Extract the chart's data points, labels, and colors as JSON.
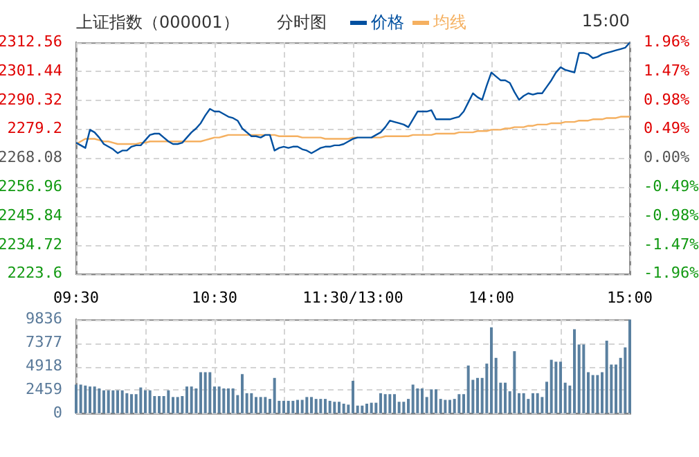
{
  "chart_data": [
    {
      "type": "line",
      "title": "上证指数（000001）",
      "subtitle": "分时图",
      "annotations": [
        "15:00"
      ],
      "legend": "top",
      "grid": true,
      "marker": "none",
      "categories": [
        "09:30",
        null,
        null,
        null,
        null,
        null,
        null,
        null,
        null,
        null,
        null,
        null,
        null,
        null,
        null,
        null,
        null,
        null,
        null,
        null,
        null,
        null,
        null,
        null,
        null,
        null,
        null,
        null,
        null,
        null,
        "10:30",
        null,
        null,
        null,
        null,
        null,
        null,
        null,
        null,
        null,
        null,
        null,
        null,
        null,
        null,
        null,
        null,
        null,
        null,
        null,
        null,
        null,
        null,
        null,
        null,
        null,
        null,
        null,
        null,
        null,
        "11:30/13:00",
        null,
        null,
        null,
        null,
        null,
        null,
        null,
        null,
        null,
        null,
        null,
        null,
        null,
        null,
        null,
        null,
        null,
        null,
        null,
        null,
        null,
        null,
        null,
        null,
        null,
        null,
        null,
        null,
        null,
        "14:00",
        null,
        null,
        null,
        null,
        null,
        null,
        null,
        null,
        null,
        null,
        null,
        null,
        null,
        null,
        null,
        null,
        null,
        null,
        null,
        null,
        null,
        null,
        null,
        null,
        null,
        null,
        null,
        null,
        null,
        "15:00"
      ],
      "ylim": [
        2223.6,
        2312.56
      ],
      "yticks": [
        2223.6,
        2234.72,
        2245.84,
        2256.96,
        2268.08,
        2279.2,
        2290.32,
        2301.44,
        2312.56
      ],
      "y2lim": [
        -1.96,
        1.96
      ],
      "y2ticks": [
        {
          "value": -1.96,
          "label": "-1.96%"
        },
        {
          "value": -1.47,
          "label": "-1.47%"
        },
        {
          "value": -0.98,
          "label": "-0.98%"
        },
        {
          "value": -0.49,
          "label": "-0.49%"
        },
        {
          "value": 0,
          "label": "0.00%"
        },
        {
          "value": 0.49,
          "label": "0.49%"
        },
        {
          "value": 0.98,
          "label": "0.98%"
        },
        {
          "value": 1.47,
          "label": "1.47%"
        },
        {
          "value": 1.96,
          "label": "1.96%"
        }
      ],
      "series": [
        {
          "name": "价格",
          "color": "#0050a0",
          "values": [
            2274,
            2273,
            2272,
            2279,
            2278,
            2276,
            2273.5,
            2272.5,
            2271.5,
            2270,
            2271,
            2271,
            2272.5,
            2273,
            2273,
            2275,
            2277,
            2277.5,
            2277.5,
            2276,
            2274.5,
            2273.5,
            2273.5,
            2274,
            2276,
            2278,
            2279.5,
            2281.5,
            2284.5,
            2287,
            2286,
            2286,
            2285,
            2284,
            2283.5,
            2282.5,
            2279.5,
            2278,
            2276.5,
            2276.5,
            2276,
            2277,
            2277,
            2271,
            2272,
            2272.5,
            2272,
            2272.5,
            2272.5,
            2271.5,
            2271,
            2270,
            2271,
            2272,
            2272.5,
            2272.5,
            2273,
            2273,
            2273.5,
            2274.5,
            2275.5,
            2276,
            2276,
            2276,
            2276,
            2277,
            2278,
            2280,
            2282.5,
            2282,
            2281.5,
            2281,
            2280,
            2283,
            2286,
            2286,
            2286,
            2286.5,
            2283,
            2283,
            2283,
            2283,
            2283.5,
            2284,
            2286,
            2289.5,
            2293,
            2291.5,
            2290.5,
            2296,
            2301,
            2299.5,
            2298,
            2298,
            2297,
            2293.5,
            2290.5,
            2292,
            2293,
            2292.5,
            2293,
            2293,
            2295.5,
            2298,
            2301,
            2303,
            2302,
            2301.5,
            2301,
            2308.5,
            2308.5,
            2308,
            2306.5,
            2307,
            2308,
            2308.5,
            2309,
            2309.5,
            2310,
            2310.5,
            2312.5
          ]
        },
        {
          "name": "均线",
          "color": "#f5b060",
          "values": [
            2273.5,
            2274.5,
            2275.5,
            2275.5,
            2275.5,
            2275,
            2274.5,
            2274.5,
            2274,
            2273.5,
            2273.5,
            2273.5,
            2273.5,
            2273.5,
            2274,
            2274,
            2274.5,
            2274.5,
            2274.5,
            2274.5,
            2274.5,
            2274.5,
            2274.5,
            2274.5,
            2274.5,
            2274.5,
            2274.5,
            2274.5,
            2275,
            2275.5,
            2276,
            2276,
            2276.5,
            2277,
            2277,
            2277,
            2277,
            2277,
            2277,
            2277,
            2277,
            2277,
            2277,
            2277,
            2276.5,
            2276.5,
            2276.5,
            2276.5,
            2276.5,
            2276,
            2276,
            2276,
            2276,
            2276,
            2275.5,
            2275.5,
            2275.5,
            2275.5,
            2275.5,
            2275.5,
            2276,
            2276,
            null,
            null,
            2276,
            2276,
            2276,
            2276.5,
            2276.5,
            2276.5,
            2276.5,
            2276.5,
            2276.5,
            2277,
            2277,
            2277,
            2277,
            2277,
            2277.5,
            2277.5,
            2277.5,
            2277.5,
            2277.5,
            2278,
            2278,
            2278,
            2278,
            2278.5,
            2278.5,
            2278.5,
            2279,
            2279,
            2279,
            2279.5,
            2279.5,
            2280,
            2280,
            2280,
            2280.5,
            2280.5,
            2281,
            2281,
            2281,
            2281.5,
            2281.5,
            2281.5,
            2282,
            2282,
            2282,
            2282.5,
            2282.5,
            2282.5,
            2283,
            2283,
            2283,
            2283.5,
            2283.5,
            2283.5,
            2284,
            2284,
            2284
          ]
        }
      ]
    },
    {
      "type": "bar",
      "grid": true,
      "tick_labels": "y",
      "color": "#5a80a0",
      "categories": [
        null,
        null,
        null,
        null,
        null,
        null,
        null,
        null,
        null,
        null,
        null,
        null,
        null,
        null,
        null,
        null,
        null,
        null,
        null,
        null,
        null,
        null,
        null,
        null,
        null,
        null,
        null,
        null,
        null,
        null,
        null,
        null,
        null,
        null,
        null,
        null,
        null,
        null,
        null,
        null,
        null,
        null,
        null,
        null,
        null,
        null,
        null,
        null,
        null,
        null,
        null,
        null,
        null,
        null,
        null,
        null,
        null,
        null,
        null,
        null,
        null,
        null,
        null,
        null,
        null,
        null,
        null,
        null,
        null,
        null,
        null,
        null,
        null,
        null,
        null,
        null,
        null,
        null,
        null,
        null,
        null,
        null,
        null,
        null,
        null,
        null,
        null,
        null,
        null,
        null,
        null,
        null,
        null,
        null,
        null,
        null,
        null,
        null,
        null,
        null,
        null,
        null,
        null,
        null,
        null,
        null,
        null,
        null,
        null,
        null,
        null,
        null,
        null,
        null,
        null,
        null,
        null,
        null,
        null,
        null,
        null
      ],
      "ylim": [
        0,
        9836
      ],
      "yticks": [
        0,
        2459,
        4918,
        7377,
        9836
      ],
      "values": [
        3000,
        3000,
        2900,
        2800,
        2800,
        2600,
        2400,
        2400,
        2400,
        2400,
        2400,
        2100,
        2000,
        2000,
        2700,
        2400,
        2400,
        1800,
        1800,
        1800,
        2400,
        1700,
        1700,
        1800,
        2800,
        2800,
        2600,
        4300,
        4300,
        4300,
        2800,
        2800,
        2600,
        2600,
        2600,
        1900,
        4100,
        2100,
        2100,
        1700,
        1700,
        1700,
        1500,
        3700,
        1300,
        1300,
        1300,
        1300,
        1400,
        1400,
        1700,
        1700,
        1500,
        1500,
        1500,
        1300,
        1200,
        1200,
        1000,
        900,
        3400,
        800,
        800,
        1000,
        1100,
        1100,
        2100,
        2000,
        2000,
        2000,
        1200,
        1200,
        1500,
        3000,
        2600,
        2600,
        1700,
        2500,
        2500,
        1500,
        1400,
        1400,
        1500,
        2000,
        2000,
        5000,
        3500,
        3700,
        3700,
        5200,
        9000,
        5800,
        3200,
        3200,
        2300,
        6500,
        2100,
        2100,
        1500,
        2100,
        2100,
        1700,
        3300,
        5600,
        5400,
        5400,
        3200,
        2900,
        8800,
        7200,
        7200,
        4300,
        4000,
        4000,
        4300,
        7600,
        5100,
        5100,
        5800,
        6900,
        9800
      ]
    }
  ]
}
